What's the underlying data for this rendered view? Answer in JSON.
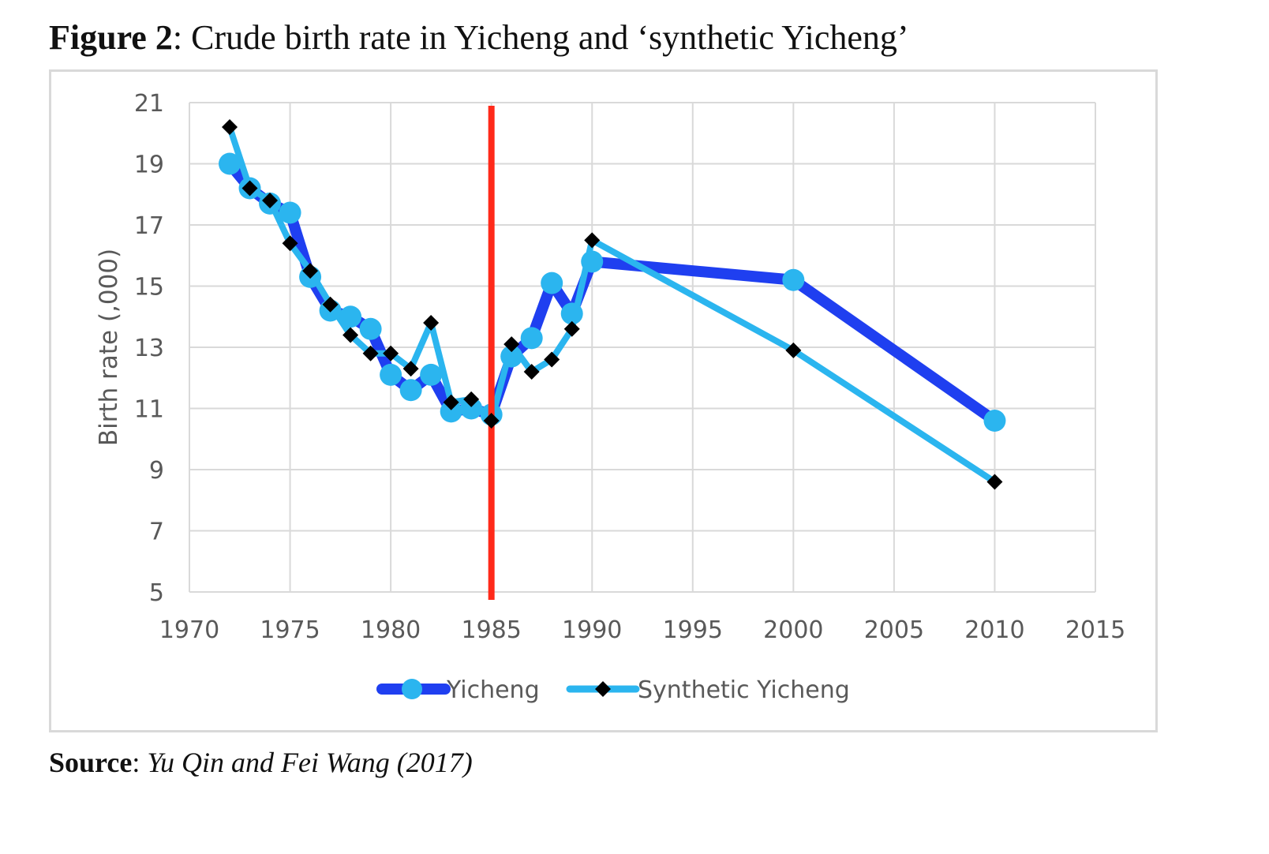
{
  "figure": {
    "label": "Figure 2",
    "title": ": Crude birth rate in Yicheng and ‘synthetic Yicheng’"
  },
  "source": {
    "label": "Source",
    "text": "Yu Qin and Fei Wang (2017)"
  },
  "chart_data": {
    "type": "line",
    "title": "",
    "xlabel": "",
    "ylabel": "Birth rate (,000)",
    "xlim": [
      1970,
      2015
    ],
    "ylim": [
      5,
      21
    ],
    "x_ticks": [
      1970,
      1975,
      1980,
      1985,
      1990,
      1995,
      2000,
      2005,
      2010,
      2015
    ],
    "y_ticks": [
      5,
      7,
      9,
      11,
      13,
      15,
      17,
      19,
      21
    ],
    "grid": true,
    "legend_position": "bottom",
    "reference_line": {
      "x": 1985,
      "color": "#ff2a1a"
    },
    "series": [
      {
        "name": "Yicheng",
        "color": "#1f3ff0",
        "marker": "circle",
        "marker_color": "#2bb5ef",
        "x": [
          1972,
          1973,
          1974,
          1975,
          1976,
          1977,
          1978,
          1979,
          1980,
          1981,
          1982,
          1983,
          1984,
          1985,
          1986,
          1987,
          1988,
          1989,
          1990,
          2000,
          2010
        ],
        "values": [
          19.0,
          18.2,
          17.7,
          17.4,
          15.3,
          14.2,
          14.0,
          13.6,
          12.1,
          11.6,
          12.1,
          10.9,
          11.0,
          10.8,
          12.7,
          13.3,
          15.1,
          14.1,
          15.8,
          15.2,
          10.6
        ]
      },
      {
        "name": "Synthetic Yicheng",
        "color": "#2bb5ef",
        "marker": "diamond",
        "marker_color": "#000000",
        "x": [
          1972,
          1973,
          1974,
          1975,
          1976,
          1977,
          1978,
          1979,
          1980,
          1981,
          1982,
          1983,
          1984,
          1985,
          1986,
          1987,
          1988,
          1989,
          1990,
          2000,
          2010
        ],
        "values": [
          20.2,
          18.2,
          17.8,
          16.4,
          15.5,
          14.4,
          13.4,
          12.8,
          12.8,
          12.3,
          13.8,
          11.2,
          11.3,
          10.6,
          13.1,
          12.2,
          12.6,
          13.6,
          16.5,
          12.9,
          8.6
        ]
      }
    ]
  }
}
